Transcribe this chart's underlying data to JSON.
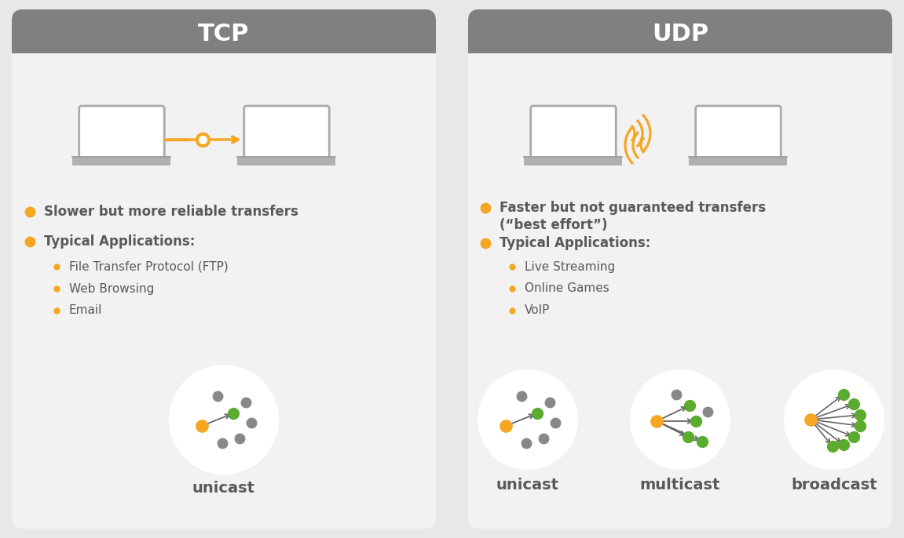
{
  "bg_color": "#e8e8e8",
  "card_bg": "#f2f2f2",
  "header_bg": "#808080",
  "orange": "#f5a623",
  "green": "#5aab2e",
  "dark_gray": "#595959",
  "node_gray": "#888888",
  "tcp_title": "TCP",
  "udp_title": "UDP",
  "tcp_bullet1": "Slower but more reliable transfers",
  "tcp_bullet2": "Typical Applications:",
  "tcp_sub1": "File Transfer Protocol (FTP)",
  "tcp_sub2": "Web Browsing",
  "tcp_sub3": "Email",
  "udp_bullet1a": "Faster but not guaranteed transfers",
  "udp_bullet1b": "(“best effort”)",
  "udp_bullet2": "Typical Applications:",
  "udp_sub1": "Live Streaming",
  "udp_sub2": "Online Games",
  "udp_sub3": "VoIP",
  "tcp_cast": "unicast",
  "udp_cast1": "unicast",
  "udp_cast2": "multicast",
  "udp_cast3": "broadcast"
}
